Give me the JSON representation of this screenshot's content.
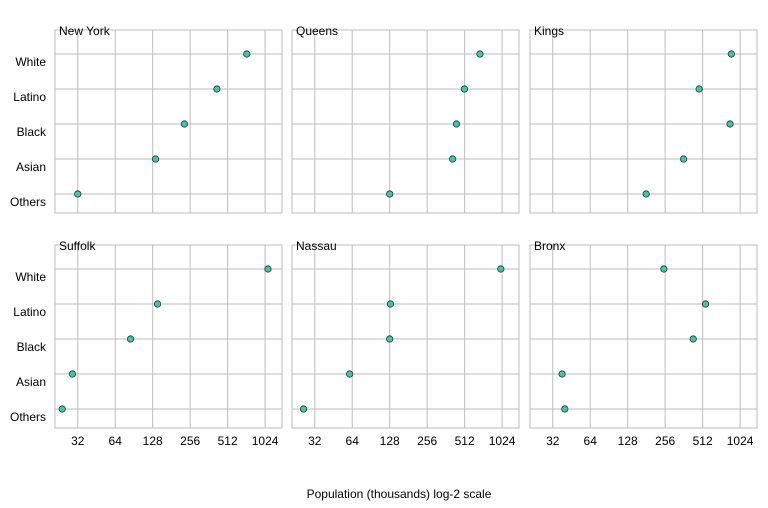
{
  "chart_data": {
    "type": "scatter",
    "xlabel": "Population (thousands) log-2 scale",
    "ylabel": "",
    "x_scale": "log2",
    "xlim": [
      21,
      1400
    ],
    "x_ticks": [
      {
        "value": 32,
        "label": "32"
      },
      {
        "value": 64,
        "label": "64"
      },
      {
        "value": 128,
        "label": "128"
      },
      {
        "value": 256,
        "label": "256"
      },
      {
        "value": 512,
        "label": "512"
      },
      {
        "value": 1024,
        "label": "1024"
      }
    ],
    "categories": [
      "White",
      "Latino",
      "Black",
      "Asian",
      "Others"
    ],
    "grid": true,
    "point_color": "#3fc7a6",
    "point_edge": "#2e2e2e",
    "grid_color": "#bdbdbd",
    "panels": [
      {
        "title": "New York",
        "values": [
          730,
          420,
          230,
          135,
          32
        ]
      },
      {
        "title": "Queens",
        "values": [
          680,
          510,
          440,
          410,
          128
        ]
      },
      {
        "title": "Kings",
        "values": [
          870,
          480,
          850,
          360,
          180
        ]
      },
      {
        "title": "Suffolk",
        "values": [
          1080,
          140,
          85,
          29,
          24
        ]
      },
      {
        "title": "Nassau",
        "values": [
          1000,
          130,
          128,
          61,
          26
        ]
      },
      {
        "title": "Bronx",
        "values": [
          250,
          540,
          430,
          38,
          40
        ]
      }
    ]
  }
}
